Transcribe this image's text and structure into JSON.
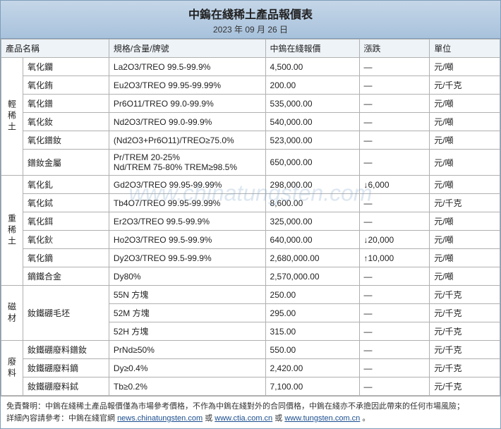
{
  "header": {
    "title": "中鎢在綫稀土產品報價表",
    "date": "2023 年 09 月 26 日"
  },
  "columns": {
    "name": "產品名稱",
    "spec": "規格/含量/牌號",
    "price": "中鎢在綫報價",
    "change": "漲跌",
    "unit": "單位"
  },
  "groups": [
    {
      "cat": "輕稀土",
      "rows": [
        {
          "name": "氧化鑭",
          "spec": "La2O3/TREO 99.5-99.9%",
          "price": "4,500.00",
          "change": "—",
          "unit": "元/噸"
        },
        {
          "name": "氧化銪",
          "spec": "Eu2O3/TREO 99.95-99.99%",
          "price": "200.00",
          "change": "—",
          "unit": "元/千克"
        },
        {
          "name": "氧化鐠",
          "spec": "Pr6O11/TREO 99.0-99.9%",
          "price": "535,000.00",
          "change": "—",
          "unit": "元/噸"
        },
        {
          "name": "氧化釹",
          "spec": "Nd2O3/TREO 99.0-99.9%",
          "price": "540,000.00",
          "change": "—",
          "unit": "元/噸"
        },
        {
          "name": "氧化鐠釹",
          "spec": "(Nd2O3+Pr6O11)/TREO≥75.0%",
          "price": "523,000.00",
          "change": "—",
          "unit": "元/噸"
        },
        {
          "name": "鐠釹金屬",
          "spec": "Pr/TREM 20-25%\nNd/TREM 75-80% TREM≥98.5%",
          "price": "650,000.00",
          "change": "—",
          "unit": "元/噸"
        }
      ]
    },
    {
      "cat": "重稀土",
      "rows": [
        {
          "name": "氧化釓",
          "spec": "Gd2O3/TREO 99.95-99.99%",
          "price": "298,000.00",
          "change": "↓6,000",
          "unit": "元/噸"
        },
        {
          "name": "氧化鋱",
          "spec": "Tb4O7/TREO 99.95-99.99%",
          "price": "8,600.00",
          "change": "—",
          "unit": "元/千克"
        },
        {
          "name": "氧化鉺",
          "spec": "Er2O3/TREO 99.5-99.9%",
          "price": "325,000.00",
          "change": "—",
          "unit": "元/噸"
        },
        {
          "name": "氧化鈥",
          "spec": "Ho2O3/TREO 99.5-99.9%",
          "price": "640,000.00",
          "change": "↓20,000",
          "unit": "元/噸"
        },
        {
          "name": "氧化鏑",
          "spec": "Dy2O3/TREO 99.5-99.9%",
          "price": "2,680,000.00",
          "change": "↑10,000",
          "unit": "元/噸"
        },
        {
          "name": "鏑鐵合金",
          "spec": "Dy80%",
          "price": "2,570,000.00",
          "change": "—",
          "unit": "元/噸"
        }
      ]
    },
    {
      "cat": "磁材",
      "rows": [
        {
          "name": "釹鐵硼毛坯",
          "rowspan": 3,
          "spec": "55N 方塊",
          "price": "250.00",
          "change": "—",
          "unit": "元/千克"
        },
        {
          "spec": "52M 方塊",
          "price": "295.00",
          "change": "—",
          "unit": "元/千克"
        },
        {
          "spec": "52H 方塊",
          "price": "315.00",
          "change": "—",
          "unit": "元/千克"
        }
      ]
    },
    {
      "cat": "廢料",
      "rows": [
        {
          "name": "釹鐵硼廢料鐠釹",
          "spec": "PrNd≥50%",
          "price": "550.00",
          "change": "—",
          "unit": "元/千克"
        },
        {
          "name": "釹鐵硼廢料鏑",
          "spec": "Dy≥0.4%",
          "price": "2,420.00",
          "change": "—",
          "unit": "元/千克"
        },
        {
          "name": "釹鐵硼廢料鋱",
          "spec": "Tb≥0.2%",
          "price": "7,100.00",
          "change": "—",
          "unit": "元/千克"
        }
      ]
    }
  ],
  "footer": {
    "line1_pre": "免責聲明：中鎢在綫稀土產品報價僅為市場參考價格，不作為中鎢在綫對外的合同價格，中鎢在綫亦不承擔因此帶來的任何市場風險；",
    "line2_pre": "詳細內容請參考：中鎢在綫官網 ",
    "link1": "news.chinatungsten.com",
    "sep1": " 或 ",
    "link2": "www.ctia.com.cn",
    "sep2": " 或 ",
    "link3": "www.tungsten.com.cn",
    "tail": "。"
  },
  "watermark": "www.chinatungsten.com"
}
